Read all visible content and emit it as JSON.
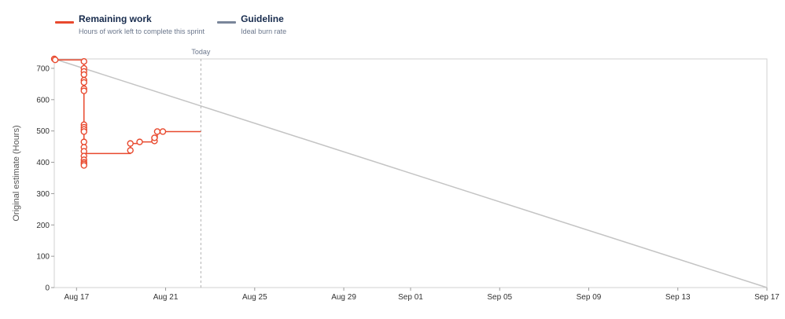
{
  "legend": [
    {
      "name": "Remaining work",
      "description": "Hours of work left to complete this sprint",
      "color": "#e8492e"
    },
    {
      "name": "Guideline",
      "description": "Ideal burn rate",
      "color": "#7a869a"
    }
  ],
  "today_label": "Today",
  "chart_data": {
    "type": "line",
    "title": "",
    "ylabel": "Original estimate (Hours)",
    "xlabel": "",
    "ylim": [
      0,
      730
    ],
    "xlim": [
      "2023-08-16",
      "2023-09-17"
    ],
    "y_ticks": [
      0,
      100,
      200,
      300,
      400,
      500,
      600,
      700
    ],
    "x_ticks": [
      {
        "date": "2023-08-17",
        "label": "Aug 17"
      },
      {
        "date": "2023-08-21",
        "label": "Aug 21"
      },
      {
        "date": "2023-08-25",
        "label": "Aug 25"
      },
      {
        "date": "2023-08-29",
        "label": "Aug 29"
      },
      {
        "date": "2023-09-01",
        "label": "Sep 01"
      },
      {
        "date": "2023-09-05",
        "label": "Sep 05"
      },
      {
        "date": "2023-09-09",
        "label": "Sep 09"
      },
      {
        "date": "2023-09-13",
        "label": "Sep 13"
      },
      {
        "date": "2023-09-17",
        "label": "Sep 17"
      }
    ],
    "today": "2023-08-22T14:00",
    "grid": false,
    "legend_position": "top-left",
    "series": [
      {
        "name": "Remaining work",
        "color": "#e8492e",
        "step": true,
        "points": [
          {
            "x": "2023-08-16T00:00",
            "y": 730
          },
          {
            "x": "2023-08-16T01:00",
            "y": 727
          },
          {
            "x": "2023-08-17T08:00",
            "y": 727
          },
          {
            "x": "2023-08-17T08:00",
            "y": 722
          },
          {
            "x": "2023-08-17T08:00",
            "y": 700
          },
          {
            "x": "2023-08-17T08:00",
            "y": 690
          },
          {
            "x": "2023-08-17T08:00",
            "y": 680
          },
          {
            "x": "2023-08-17T08:00",
            "y": 662
          },
          {
            "x": "2023-08-17T08:00",
            "y": 655
          },
          {
            "x": "2023-08-17T08:00",
            "y": 635
          },
          {
            "x": "2023-08-17T08:00",
            "y": 628
          },
          {
            "x": "2023-08-17T08:00",
            "y": 520
          },
          {
            "x": "2023-08-17T08:00",
            "y": 512
          },
          {
            "x": "2023-08-17T08:00",
            "y": 505
          },
          {
            "x": "2023-08-17T08:00",
            "y": 498
          },
          {
            "x": "2023-08-17T08:00",
            "y": 465
          },
          {
            "x": "2023-08-17T08:00",
            "y": 448
          },
          {
            "x": "2023-08-17T08:00",
            "y": 435
          },
          {
            "x": "2023-08-17T08:00",
            "y": 420
          },
          {
            "x": "2023-08-17T08:00",
            "y": 408
          },
          {
            "x": "2023-08-17T08:00",
            "y": 400
          },
          {
            "x": "2023-08-17T08:00",
            "y": 395
          },
          {
            "x": "2023-08-17T08:00",
            "y": 390
          },
          {
            "x": "2023-08-17T08:00",
            "y": 428
          },
          {
            "x": "2023-08-19T10:00",
            "y": 428
          },
          {
            "x": "2023-08-19T10:00",
            "y": 438
          },
          {
            "x": "2023-08-19T10:00",
            "y": 460
          },
          {
            "x": "2023-08-19T20:00",
            "y": 465
          },
          {
            "x": "2023-08-20T12:00",
            "y": 468
          },
          {
            "x": "2023-08-20T12:00",
            "y": 478
          },
          {
            "x": "2023-08-20T15:00",
            "y": 498
          },
          {
            "x": "2023-08-20T21:00",
            "y": 498
          },
          {
            "x": "2023-08-22T14:00",
            "y": 498
          }
        ],
        "marker_indices": [
          0,
          1,
          3,
          4,
          5,
          6,
          7,
          8,
          9,
          10,
          11,
          12,
          13,
          14,
          15,
          16,
          17,
          18,
          19,
          20,
          21,
          22,
          25,
          26,
          27,
          28,
          29,
          30,
          31
        ]
      },
      {
        "name": "Guideline",
        "color": "#c4c4c4",
        "points": [
          {
            "x": "2023-08-16T00:00",
            "y": 730
          },
          {
            "x": "2023-09-17T00:00",
            "y": 0
          }
        ]
      }
    ]
  }
}
